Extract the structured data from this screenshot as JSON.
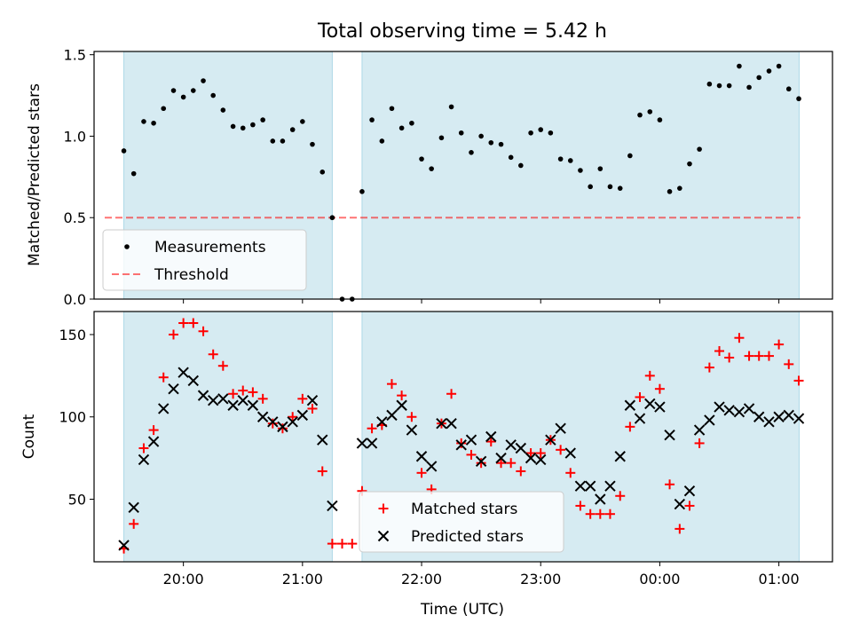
{
  "figure": {
    "title": "Total observing time = 5.42 h"
  },
  "colors": {
    "observing_band": "#add8e6",
    "threshold": "#ff0000",
    "measurements": "#000000",
    "matched": "#ff0000",
    "predicted": "#000000"
  },
  "chart_data": [
    {
      "type": "scatter",
      "ylabel": "Matched/Predicted stars",
      "ylim": [
        0,
        1.52
      ],
      "yticks": [
        0.0,
        0.5,
        1.0,
        1.5
      ],
      "ytick_labels": [
        "0.0",
        "0.5",
        "1.0",
        "1.5"
      ],
      "xlim": [
        19.25,
        25.45
      ],
      "xticks": [
        20,
        21,
        22,
        23,
        24,
        25
      ],
      "shared_x_tick_labels_hidden": true,
      "observing_windows": [
        [
          19.5,
          21.25
        ],
        [
          21.5,
          25.17
        ]
      ],
      "threshold": 0.5,
      "legend": {
        "placement": "lower left",
        "entries": [
          "Measurements",
          "Threshold"
        ]
      },
      "series": [
        {
          "name": "Measurements",
          "marker": "dot",
          "x": [
            19.5,
            19.583,
            19.667,
            19.75,
            19.833,
            19.917,
            20.0,
            20.083,
            20.167,
            20.25,
            20.333,
            20.417,
            20.5,
            20.583,
            20.667,
            20.75,
            20.833,
            20.917,
            21.0,
            21.083,
            21.167,
            21.25,
            21.333,
            21.417,
            21.5,
            21.583,
            21.667,
            21.75,
            21.833,
            21.917,
            22.0,
            22.083,
            22.167,
            22.25,
            22.333,
            22.417,
            22.5,
            22.583,
            22.667,
            22.75,
            22.833,
            22.917,
            23.0,
            23.083,
            23.167,
            23.25,
            23.333,
            23.417,
            23.5,
            23.583,
            23.667,
            23.75,
            23.833,
            23.917,
            24.0,
            24.083,
            24.167,
            24.25,
            24.333,
            24.417,
            24.5,
            24.583,
            24.667,
            24.75,
            24.833,
            24.917,
            25.0,
            25.083,
            25.167
          ],
          "y": [
            0.91,
            0.77,
            1.09,
            1.08,
            1.17,
            1.28,
            1.24,
            1.28,
            1.34,
            1.25,
            1.16,
            1.06,
            1.05,
            1.07,
            1.1,
            0.97,
            0.97,
            1.04,
            1.09,
            0.95,
            0.78,
            0.5,
            0.0,
            0.0,
            0.66,
            1.1,
            0.97,
            1.17,
            1.05,
            1.08,
            0.86,
            0.8,
            0.99,
            1.18,
            1.02,
            0.9,
            1.0,
            0.96,
            0.95,
            0.87,
            0.82,
            1.02,
            1.04,
            1.02,
            0.86,
            0.85,
            0.79,
            0.69,
            0.8,
            0.69,
            0.68,
            0.88,
            1.13,
            1.15,
            1.1,
            0.66,
            0.68,
            0.83,
            0.92,
            1.32,
            1.31,
            1.31,
            1.43,
            1.3,
            1.36,
            1.4,
            1.43,
            1.29,
            1.23
          ]
        }
      ]
    },
    {
      "type": "scatter",
      "xlabel": "Time (UTC)",
      "ylabel": "Count",
      "ylim": [
        12,
        164
      ],
      "yticks": [
        50,
        100,
        150
      ],
      "ytick_labels": [
        "50",
        "100",
        "150"
      ],
      "xlim": [
        19.25,
        25.45
      ],
      "xticks": [
        20,
        21,
        22,
        23,
        24,
        25
      ],
      "xtick_labels": [
        "20:00",
        "21:00",
        "22:00",
        "23:00",
        "00:00",
        "01:00"
      ],
      "observing_windows": [
        [
          19.5,
          21.25
        ],
        [
          21.5,
          25.17
        ]
      ],
      "legend": {
        "placement": "lower center",
        "entries": [
          "Matched stars",
          "Predicted stars"
        ]
      },
      "series": [
        {
          "name": "Matched stars",
          "marker": "plus",
          "x": [
            19.5,
            19.583,
            19.667,
            19.75,
            19.833,
            19.917,
            20.0,
            20.083,
            20.167,
            20.25,
            20.333,
            20.417,
            20.5,
            20.583,
            20.667,
            20.75,
            20.833,
            20.917,
            21.0,
            21.083,
            21.167,
            21.25,
            21.333,
            21.417,
            21.5,
            21.583,
            21.667,
            21.75,
            21.833,
            21.917,
            22.0,
            22.083,
            22.167,
            22.25,
            22.333,
            22.417,
            22.5,
            22.583,
            22.667,
            22.75,
            22.833,
            22.917,
            23.0,
            23.083,
            23.167,
            23.25,
            23.333,
            23.417,
            23.5,
            23.583,
            23.667,
            23.75,
            23.833,
            23.917,
            24.0,
            24.083,
            24.167,
            24.25,
            24.333,
            24.417,
            24.5,
            24.583,
            24.667,
            24.75,
            24.833,
            24.917,
            25.0,
            25.083,
            25.167
          ],
          "y": [
            20,
            35,
            81,
            92,
            124,
            150,
            157,
            157,
            152,
            138,
            131,
            114,
            116,
            115,
            111,
            96,
            93,
            100,
            111,
            105,
            67,
            23,
            23,
            23,
            55,
            93,
            95,
            120,
            113,
            100,
            66,
            56,
            96,
            114,
            84,
            77,
            72,
            85,
            72,
            72,
            67,
            78,
            78,
            86,
            80,
            66,
            46,
            41,
            41,
            41,
            52,
            94,
            112,
            125,
            117,
            59,
            32,
            46,
            84,
            130,
            140,
            136,
            148,
            137,
            137,
            137,
            144,
            132,
            122
          ]
        },
        {
          "name": "Predicted stars",
          "marker": "x",
          "x": [
            19.5,
            19.583,
            19.667,
            19.75,
            19.833,
            19.917,
            20.0,
            20.083,
            20.167,
            20.25,
            20.333,
            20.417,
            20.5,
            20.583,
            20.667,
            20.75,
            20.833,
            20.917,
            21.0,
            21.083,
            21.167,
            21.25,
            21.5,
            21.583,
            21.667,
            21.75,
            21.833,
            21.917,
            22.0,
            22.083,
            22.167,
            22.25,
            22.333,
            22.417,
            22.5,
            22.583,
            22.667,
            22.75,
            22.833,
            22.917,
            23.0,
            23.083,
            23.167,
            23.25,
            23.333,
            23.417,
            23.5,
            23.583,
            23.667,
            23.75,
            23.833,
            23.917,
            24.0,
            24.083,
            24.167,
            24.25,
            24.333,
            24.417,
            24.5,
            24.583,
            24.667,
            24.75,
            24.833,
            24.917,
            25.0,
            25.083,
            25.167
          ],
          "y": [
            22,
            45,
            74,
            85,
            105,
            117,
            127,
            122,
            113,
            110,
            111,
            107,
            110,
            107,
            100,
            97,
            94,
            97,
            101,
            110,
            86,
            46,
            84,
            84,
            97,
            101,
            107,
            92,
            76,
            70,
            96,
            96,
            83,
            86,
            73,
            88,
            75,
            83,
            81,
            75,
            74,
            86,
            93,
            78,
            58,
            58,
            50,
            58,
            76,
            107,
            99,
            108,
            106,
            89,
            47,
            55,
            92,
            98,
            106,
            104,
            103,
            105,
            100,
            97,
            100,
            101,
            99
          ]
        }
      ]
    }
  ]
}
